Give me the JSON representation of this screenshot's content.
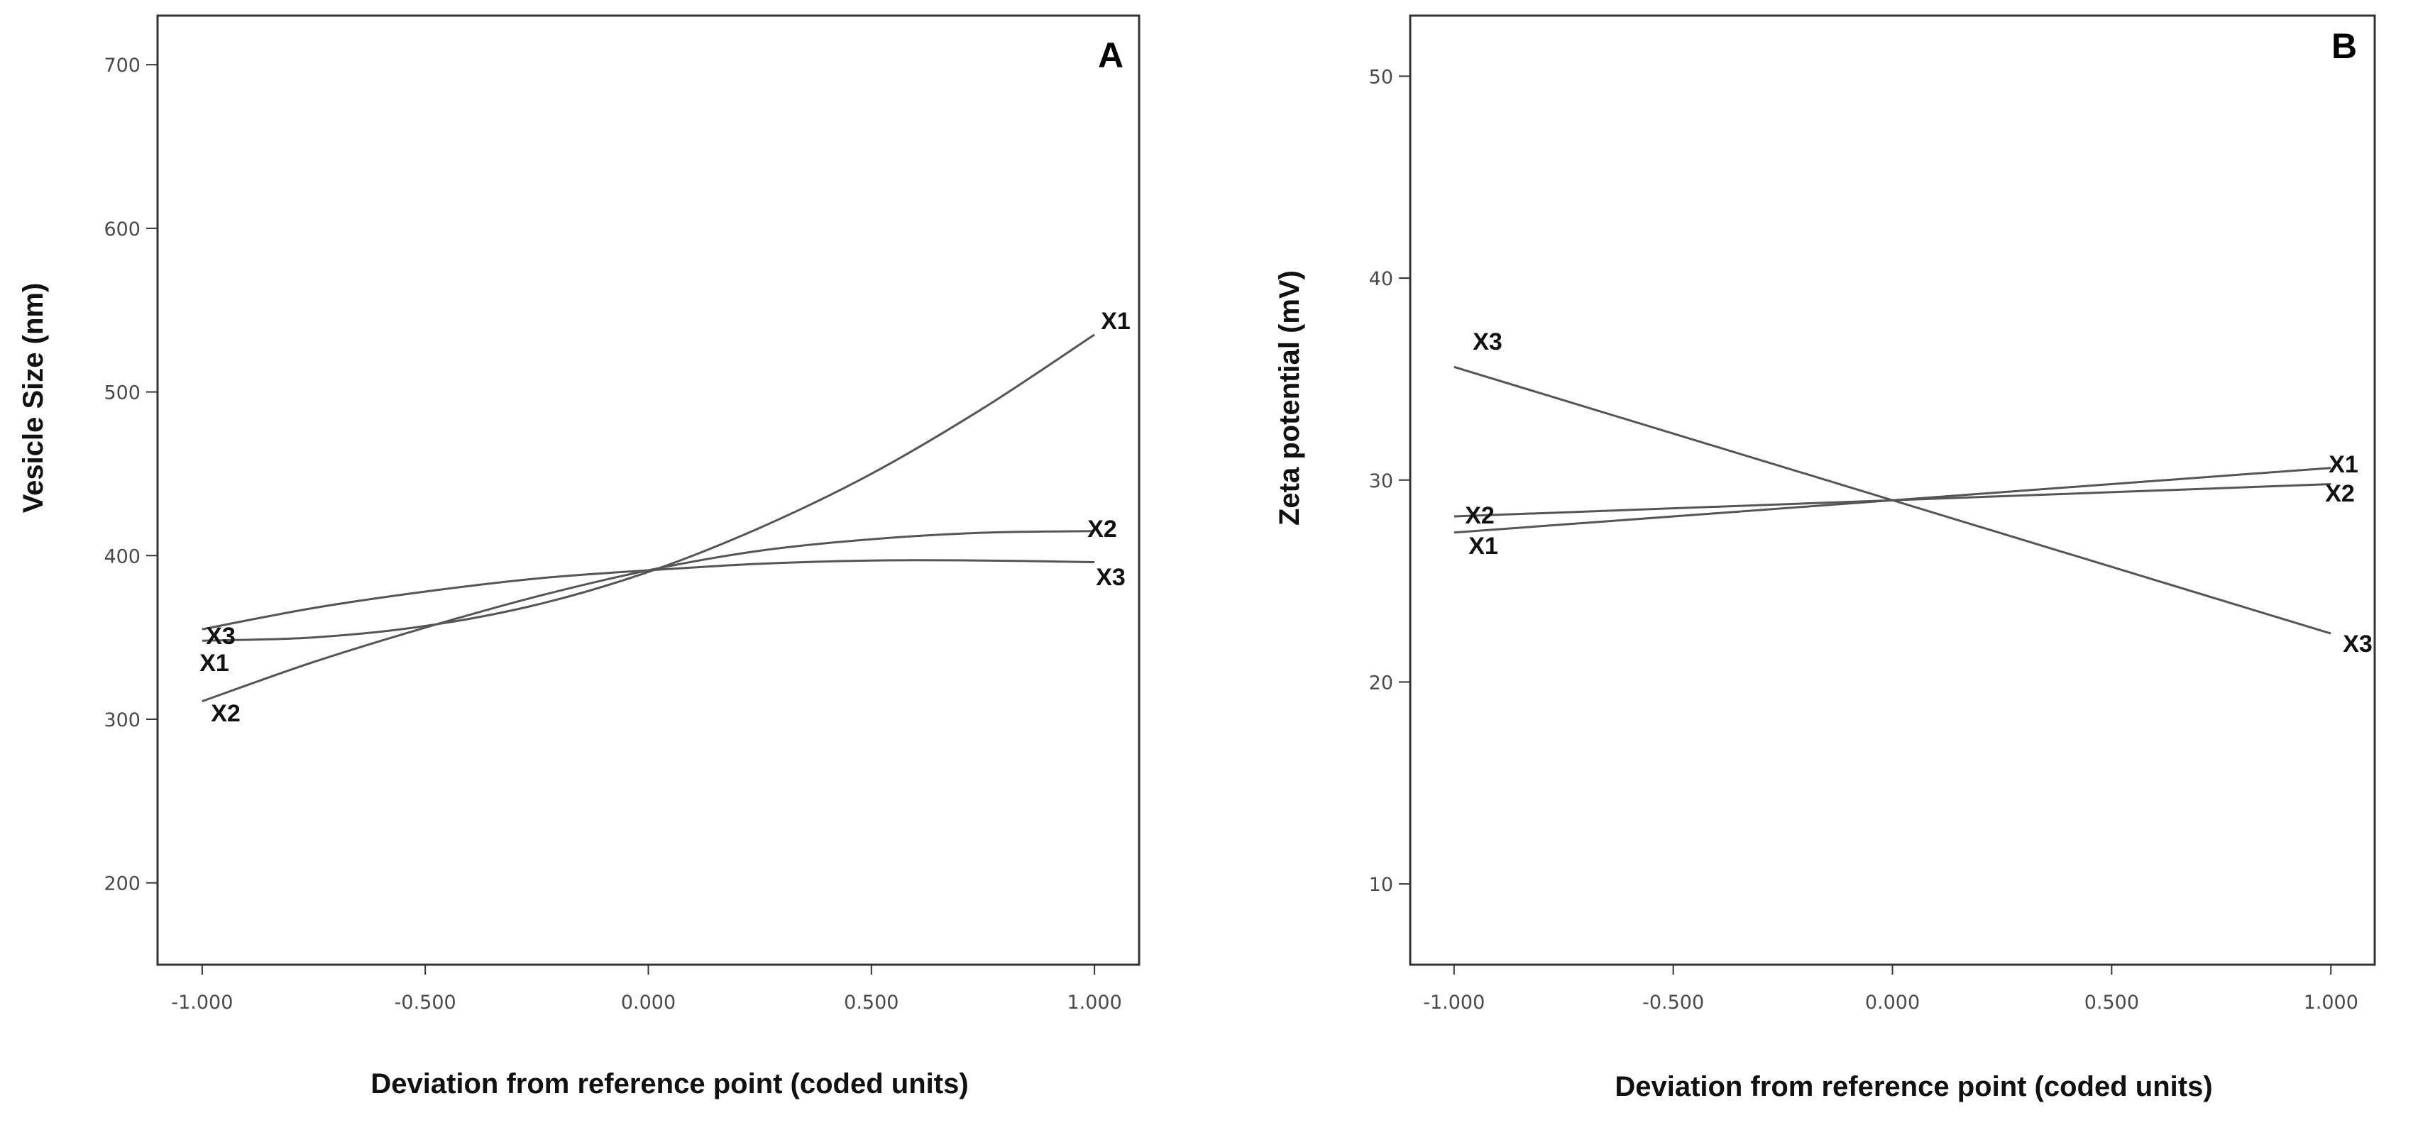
{
  "chart_data": [
    {
      "type": "line",
      "panel": "A",
      "xlabel": "Deviation from reference point (coded units)",
      "ylabel": "Vesicle Size (nm)",
      "xlim": [
        -1.1,
        1.1
      ],
      "ylim": [
        150,
        730
      ],
      "xticks": [
        -1,
        -0.5,
        0,
        0.5,
        1
      ],
      "xtick_labels": [
        "-1.000",
        "-0.500",
        "0.000",
        "0.500",
        "1.000"
      ],
      "yticks": [
        200,
        300,
        400,
        500,
        600,
        700
      ],
      "ytick_labels": [
        "200",
        "300",
        "400",
        "500",
        "600",
        "700"
      ],
      "series": [
        {
          "name": "X1",
          "x": [
            -1,
            -0.75,
            -0.5,
            -0.25,
            0,
            0.25,
            0.5,
            0.75,
            1
          ],
          "y": [
            348,
            350,
            357,
            370,
            390,
            417,
            450,
            490,
            535
          ]
        },
        {
          "name": "X2",
          "x": [
            -1,
            -0.75,
            -0.5,
            -0.25,
            0,
            0.25,
            0.5,
            0.75,
            1
          ],
          "y": [
            311,
            335,
            356,
            375,
            391,
            403,
            410,
            414,
            415
          ]
        },
        {
          "name": "X3",
          "x": [
            -1,
            -0.75,
            -0.5,
            -0.25,
            0,
            0.25,
            0.5,
            0.75,
            1
          ],
          "y": [
            355,
            368,
            378,
            386,
            391,
            395,
            397,
            397,
            396
          ]
        }
      ]
    },
    {
      "type": "line",
      "panel": "B",
      "xlabel": "Deviation from reference point (coded units)",
      "ylabel": "Zeta potential (mV)",
      "xlim": [
        -1.1,
        1.1
      ],
      "ylim": [
        6,
        53
      ],
      "xticks": [
        -1,
        -0.5,
        0,
        0.5,
        1
      ],
      "xtick_labels": [
        "-1.000",
        "-0.500",
        "0.000",
        "0.500",
        "1.000"
      ],
      "yticks": [
        10,
        20,
        30,
        40,
        50
      ],
      "ytick_labels": [
        "10",
        "20",
        "30",
        "40",
        "50"
      ],
      "series": [
        {
          "name": "X1",
          "x": [
            -1,
            1
          ],
          "y": [
            27.4,
            30.6
          ]
        },
        {
          "name": "X2",
          "x": [
            -1,
            1
          ],
          "y": [
            28.2,
            29.8
          ]
        },
        {
          "name": "X3",
          "x": [
            -1,
            1
          ],
          "y": [
            35.6,
            22.4
          ]
        }
      ]
    }
  ]
}
